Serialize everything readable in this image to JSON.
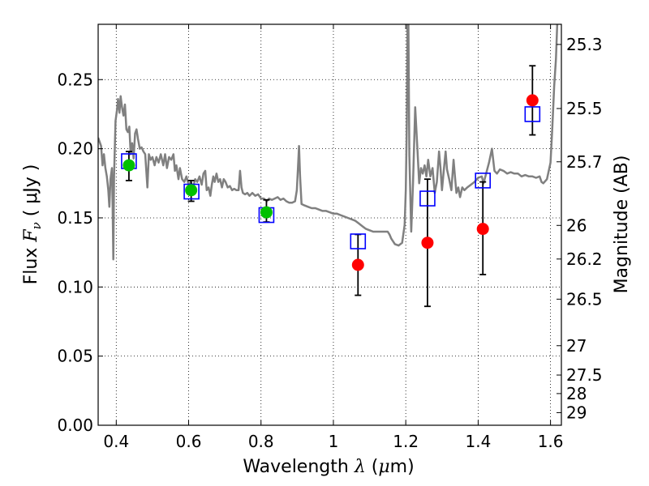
{
  "chart_data": {
    "type": "scatter",
    "title": "",
    "xlabel": {
      "prefix": "Wavelength  ",
      "symbol": "λ",
      "mid": " (",
      "unit_sym": "μ",
      "suffix": "m)"
    },
    "ylabel": {
      "prefix": "Flux  ",
      "symbol": "F",
      "sub": "ν",
      "suffix": "  (  μJy )"
    },
    "y2label": "Magnitude (AB)",
    "xlim": [
      0.35,
      1.63
    ],
    "ylim": [
      0.0,
      0.29
    ],
    "grid": true,
    "x_ticks": [
      {
        "v": 0.4,
        "label": "0.4"
      },
      {
        "v": 0.6,
        "label": "0.6"
      },
      {
        "v": 0.8,
        "label": "0.8"
      },
      {
        "v": 1.0,
        "label": "1"
      },
      {
        "v": 1.2,
        "label": "1.2"
      },
      {
        "v": 1.4,
        "label": "1.4"
      },
      {
        "v": 1.6,
        "label": "1.6"
      }
    ],
    "y_ticks": [
      {
        "v": 0.0,
        "label": "0.00"
      },
      {
        "v": 0.05,
        "label": "0.05"
      },
      {
        "v": 0.1,
        "label": "0.10"
      },
      {
        "v": 0.15,
        "label": "0.15"
      },
      {
        "v": 0.2,
        "label": "0.20"
      },
      {
        "v": 0.25,
        "label": "0.25"
      }
    ],
    "y2_ticks": [
      {
        "mag": 25.3,
        "label": "25.3"
      },
      {
        "mag": 25.5,
        "label": "25.5"
      },
      {
        "mag": 25.7,
        "label": "25.7"
      },
      {
        "mag": 26.0,
        "label": "26"
      },
      {
        "mag": 26.2,
        "label": "26.2"
      },
      {
        "mag": 26.5,
        "label": "26.5"
      },
      {
        "mag": 27.0,
        "label": "27"
      },
      {
        "mag": 27.5,
        "label": "27.5"
      },
      {
        "mag": 28.0,
        "label": "28"
      },
      {
        "mag": 29.0,
        "label": "29"
      }
    ],
    "series": [
      {
        "kind": "template",
        "color": "#808080",
        "points": [
          [
            0.35,
            0.208
          ],
          [
            0.358,
            0.202
          ],
          [
            0.362,
            0.188
          ],
          [
            0.366,
            0.196
          ],
          [
            0.37,
            0.186
          ],
          [
            0.374,
            0.18
          ],
          [
            0.378,
            0.17
          ],
          [
            0.381,
            0.158
          ],
          [
            0.384,
            0.178
          ],
          [
            0.388,
            0.186
          ],
          [
            0.39,
            0.16
          ],
          [
            0.392,
            0.12
          ],
          [
            0.394,
            0.18
          ],
          [
            0.398,
            0.22
          ],
          [
            0.402,
            0.228
          ],
          [
            0.405,
            0.236
          ],
          [
            0.409,
            0.226
          ],
          [
            0.412,
            0.238
          ],
          [
            0.416,
            0.23
          ],
          [
            0.42,
            0.224
          ],
          [
            0.424,
            0.232
          ],
          [
            0.428,
            0.214
          ],
          [
            0.432,
            0.212
          ],
          [
            0.436,
            0.216
          ],
          [
            0.44,
            0.196
          ],
          [
            0.444,
            0.204
          ],
          [
            0.448,
            0.193
          ],
          [
            0.452,
            0.211
          ],
          [
            0.456,
            0.214
          ],
          [
            0.46,
            0.207
          ],
          [
            0.465,
            0.2
          ],
          [
            0.47,
            0.201
          ],
          [
            0.475,
            0.198
          ],
          [
            0.48,
            0.196
          ],
          [
            0.486,
            0.172
          ],
          [
            0.49,
            0.196
          ],
          [
            0.495,
            0.192
          ],
          [
            0.5,
            0.194
          ],
          [
            0.506,
            0.188
          ],
          [
            0.511,
            0.194
          ],
          [
            0.517,
            0.19
          ],
          [
            0.523,
            0.196
          ],
          [
            0.53,
            0.188
          ],
          [
            0.535,
            0.196
          ],
          [
            0.54,
            0.186
          ],
          [
            0.546,
            0.194
          ],
          [
            0.552,
            0.192
          ],
          [
            0.558,
            0.196
          ],
          [
            0.562,
            0.184
          ],
          [
            0.566,
            0.188
          ],
          [
            0.572,
            0.178
          ],
          [
            0.576,
            0.186
          ],
          [
            0.582,
            0.178
          ],
          [
            0.588,
            0.176
          ],
          [
            0.594,
            0.18
          ],
          [
            0.6,
            0.174
          ],
          [
            0.606,
            0.176
          ],
          [
            0.612,
            0.172
          ],
          [
            0.618,
            0.178
          ],
          [
            0.624,
            0.176
          ],
          [
            0.63,
            0.18
          ],
          [
            0.636,
            0.174
          ],
          [
            0.641,
            0.182
          ],
          [
            0.646,
            0.184
          ],
          [
            0.65,
            0.17
          ],
          [
            0.655,
            0.172
          ],
          [
            0.66,
            0.166
          ],
          [
            0.664,
            0.174
          ],
          [
            0.668,
            0.18
          ],
          [
            0.672,
            0.176
          ],
          [
            0.677,
            0.182
          ],
          [
            0.682,
            0.176
          ],
          [
            0.687,
            0.178
          ],
          [
            0.692,
            0.172
          ],
          [
            0.697,
            0.178
          ],
          [
            0.702,
            0.176
          ],
          [
            0.708,
            0.172
          ],
          [
            0.714,
            0.173
          ],
          [
            0.72,
            0.17
          ],
          [
            0.726,
            0.171
          ],
          [
            0.732,
            0.17
          ],
          [
            0.738,
            0.17
          ],
          [
            0.742,
            0.184
          ],
          [
            0.746,
            0.172
          ],
          [
            0.75,
            0.168
          ],
          [
            0.756,
            0.167
          ],
          [
            0.762,
            0.168
          ],
          [
            0.768,
            0.166
          ],
          [
            0.776,
            0.168
          ],
          [
            0.784,
            0.166
          ],
          [
            0.792,
            0.167
          ],
          [
            0.8,
            0.164
          ],
          [
            0.808,
            0.164
          ],
          [
            0.816,
            0.162
          ],
          [
            0.822,
            0.164
          ],
          [
            0.83,
            0.163
          ],
          [
            0.838,
            0.164
          ],
          [
            0.846,
            0.165
          ],
          [
            0.854,
            0.163
          ],
          [
            0.862,
            0.164
          ],
          [
            0.87,
            0.162
          ],
          [
            0.878,
            0.161
          ],
          [
            0.886,
            0.161
          ],
          [
            0.894,
            0.162
          ],
          [
            0.899,
            0.17
          ],
          [
            0.902,
            0.185
          ],
          [
            0.905,
            0.202
          ],
          [
            0.908,
            0.18
          ],
          [
            0.912,
            0.16
          ],
          [
            0.92,
            0.159
          ],
          [
            0.93,
            0.158
          ],
          [
            0.94,
            0.157
          ],
          [
            0.95,
            0.157
          ],
          [
            0.96,
            0.156
          ],
          [
            0.97,
            0.155
          ],
          [
            0.98,
            0.155
          ],
          [
            0.99,
            0.154
          ],
          [
            1.0,
            0.153
          ],
          [
            1.01,
            0.153
          ],
          [
            1.02,
            0.152
          ],
          [
            1.03,
            0.151
          ],
          [
            1.04,
            0.15
          ],
          [
            1.05,
            0.149
          ],
          [
            1.06,
            0.148
          ],
          [
            1.07,
            0.146
          ],
          [
            1.08,
            0.144
          ],
          [
            1.09,
            0.142
          ],
          [
            1.1,
            0.141
          ],
          [
            1.11,
            0.14
          ],
          [
            1.12,
            0.14
          ],
          [
            1.13,
            0.14
          ],
          [
            1.14,
            0.14
          ],
          [
            1.15,
            0.14
          ],
          [
            1.155,
            0.138
          ],
          [
            1.16,
            0.135
          ],
          [
            1.17,
            0.131
          ],
          [
            1.18,
            0.13
          ],
          [
            1.19,
            0.132
          ],
          [
            1.197,
            0.145
          ],
          [
            1.2,
            0.17
          ],
          [
            1.203,
            0.22
          ],
          [
            1.205,
            0.3
          ],
          [
            1.207,
            0.3
          ],
          [
            1.21,
            0.195
          ],
          [
            1.215,
            0.14
          ],
          [
            1.22,
            0.175
          ],
          [
            1.226,
            0.23
          ],
          [
            1.232,
            0.2
          ],
          [
            1.237,
            0.175
          ],
          [
            1.242,
            0.186
          ],
          [
            1.247,
            0.182
          ],
          [
            1.252,
            0.188
          ],
          [
            1.257,
            0.18
          ],
          [
            1.262,
            0.192
          ],
          [
            1.268,
            0.18
          ],
          [
            1.274,
            0.186
          ],
          [
            1.28,
            0.168
          ],
          [
            1.286,
            0.176
          ],
          [
            1.292,
            0.198
          ],
          [
            1.296,
            0.186
          ],
          [
            1.3,
            0.17
          ],
          [
            1.305,
            0.184
          ],
          [
            1.31,
            0.198
          ],
          [
            1.314,
            0.185
          ],
          [
            1.32,
            0.178
          ],
          [
            1.326,
            0.17
          ],
          [
            1.332,
            0.192
          ],
          [
            1.336,
            0.18
          ],
          [
            1.34,
            0.168
          ],
          [
            1.345,
            0.172
          ],
          [
            1.35,
            0.165
          ],
          [
            1.356,
            0.172
          ],
          [
            1.362,
            0.17
          ],
          [
            1.37,
            0.172
          ],
          [
            1.38,
            0.174
          ],
          [
            1.39,
            0.176
          ],
          [
            1.4,
            0.179
          ],
          [
            1.41,
            0.18
          ],
          [
            1.415,
            0.175
          ],
          [
            1.42,
            0.18
          ],
          [
            1.43,
            0.19
          ],
          [
            1.438,
            0.2
          ],
          [
            1.445,
            0.184
          ],
          [
            1.452,
            0.182
          ],
          [
            1.46,
            0.185
          ],
          [
            1.47,
            0.184
          ],
          [
            1.48,
            0.182
          ],
          [
            1.49,
            0.183
          ],
          [
            1.5,
            0.182
          ],
          [
            1.51,
            0.182
          ],
          [
            1.52,
            0.18
          ],
          [
            1.53,
            0.181
          ],
          [
            1.54,
            0.18
          ],
          [
            1.55,
            0.18
          ],
          [
            1.56,
            0.179
          ],
          [
            1.57,
            0.18
          ],
          [
            1.575,
            0.176
          ],
          [
            1.58,
            0.175
          ],
          [
            1.59,
            0.178
          ],
          [
            1.6,
            0.19
          ],
          [
            1.605,
            0.215
          ],
          [
            1.61,
            0.245
          ],
          [
            1.615,
            0.265
          ],
          [
            1.62,
            0.3
          ]
        ]
      },
      {
        "kind": "model-squares",
        "color": "#0000ff",
        "points": [
          {
            "x": 0.435,
            "y": 0.191
          },
          {
            "x": 0.608,
            "y": 0.169
          },
          {
            "x": 0.815,
            "y": 0.152
          },
          {
            "x": 1.068,
            "y": 0.133
          },
          {
            "x": 1.26,
            "y": 0.164
          },
          {
            "x": 1.413,
            "y": 0.177
          },
          {
            "x": 1.55,
            "y": 0.225
          }
        ]
      },
      {
        "kind": "observed",
        "color_optical": "#00c000",
        "color_ir": "#ff0000",
        "errorbar_color": "#000000",
        "points": [
          {
            "x": 0.435,
            "y": 0.188,
            "lo": 0.177,
            "hi": 0.198,
            "band": "optical"
          },
          {
            "x": 0.607,
            "y": 0.17,
            "lo": 0.162,
            "hi": 0.177,
            "band": "optical"
          },
          {
            "x": 0.815,
            "y": 0.154,
            "lo": 0.147,
            "hi": 0.163,
            "band": "optical"
          },
          {
            "x": 1.068,
            "y": 0.116,
            "lo": 0.094,
            "hi": 0.138,
            "band": "ir"
          },
          {
            "x": 1.26,
            "y": 0.132,
            "lo": 0.086,
            "hi": 0.178,
            "band": "ir"
          },
          {
            "x": 1.413,
            "y": 0.142,
            "lo": 0.109,
            "hi": 0.176,
            "band": "ir"
          },
          {
            "x": 1.55,
            "y": 0.235,
            "lo": 0.21,
            "hi": 0.26,
            "band": "ir"
          }
        ]
      }
    ]
  }
}
